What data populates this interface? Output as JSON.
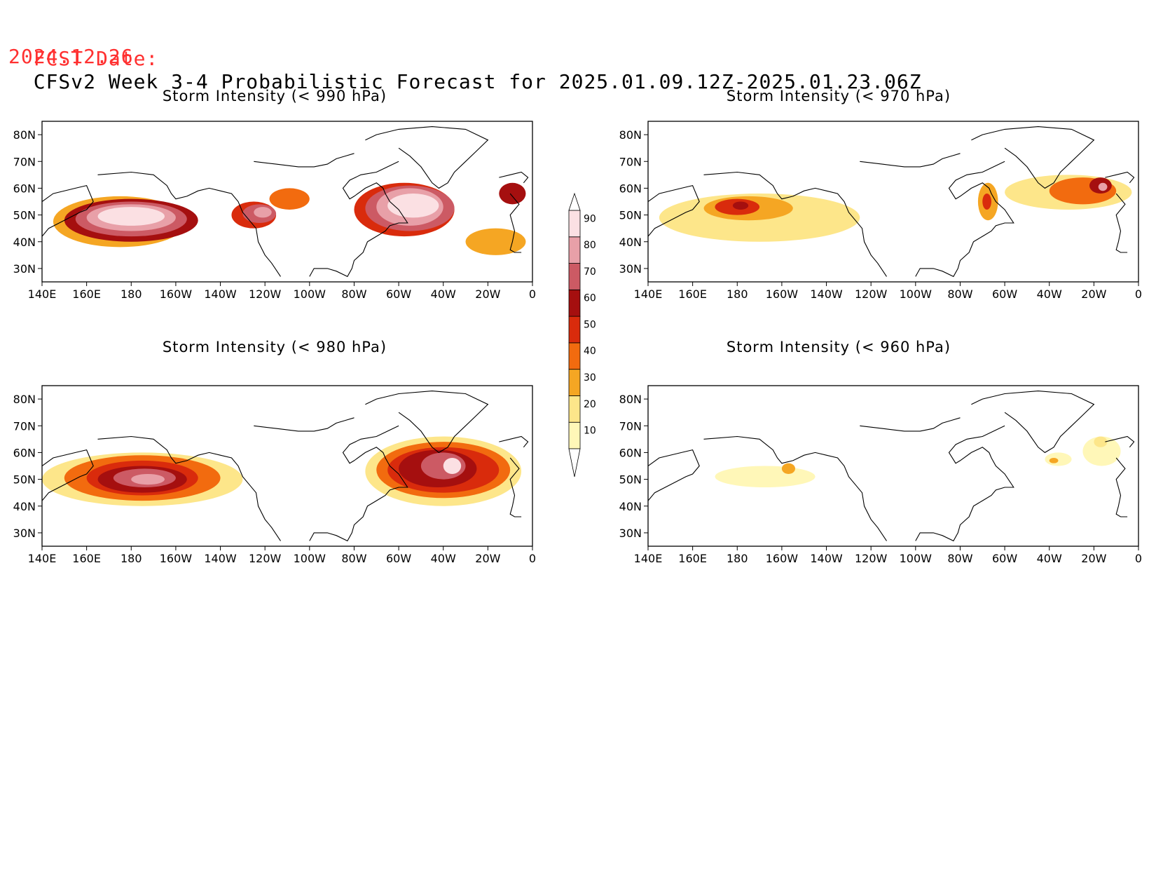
{
  "header": {
    "fcst_label": "FCST Date:",
    "fcst_date": "2024.12.26",
    "title": "CFSv2 Week 3-4 Probabilistic Forecast for 2025.01.09.12Z-2025.01.23.06Z"
  },
  "axes": {
    "lat_ticks": [
      "80N",
      "70N",
      "60N",
      "50N",
      "40N",
      "30N"
    ],
    "lon_ticks": [
      "140E",
      "160E",
      "180",
      "160W",
      "140W",
      "120W",
      "100W",
      "80W",
      "60W",
      "40W",
      "20W",
      "0"
    ]
  },
  "panels": [
    {
      "title": "Storm Intensity (< 990 hPa)",
      "level": "990"
    },
    {
      "title": "Storm Intensity (< 970 hPa)",
      "level": "970"
    },
    {
      "title": "Storm Intensity (< 980 hPa)",
      "level": "980"
    },
    {
      "title": "Storm Intensity (< 960 hPa)",
      "level": "960"
    }
  ],
  "colorbar": {
    "labels": [
      "10",
      "20",
      "30",
      "40",
      "50",
      "60",
      "70",
      "80",
      "90"
    ],
    "colors": [
      "#fff7b8",
      "#fde68a",
      "#f5a623",
      "#f26b0f",
      "#d92b0c",
      "#a50f0f",
      "#cc5a64",
      "#e8a0a8",
      "#fbe0e3"
    ]
  }
}
